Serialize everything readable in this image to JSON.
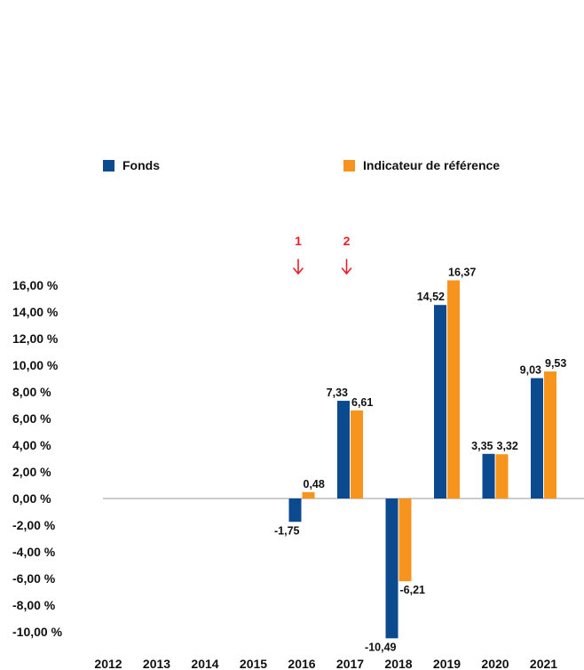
{
  "chart_data": {
    "type": "bar",
    "categories": [
      "2012",
      "2013",
      "2014",
      "2015",
      "2016",
      "2017",
      "2018",
      "2019",
      "2020",
      "2021"
    ],
    "series": [
      {
        "name": "Fonds",
        "color": "#0b4a8f",
        "values": [
          null,
          null,
          null,
          null,
          -1.75,
          7.33,
          -10.49,
          14.52,
          3.35,
          9.03
        ],
        "labels": [
          "",
          "",
          "",
          "",
          "-1,75",
          "7,33",
          "-10,49",
          "14,52",
          "3,35",
          "9,03"
        ]
      },
      {
        "name": "Indicateur de référence",
        "color": "#f7941d",
        "values": [
          null,
          null,
          null,
          null,
          0.48,
          6.61,
          -6.21,
          16.37,
          3.32,
          9.53
        ],
        "labels": [
          "",
          "",
          "",
          "",
          "0,48",
          "6,61",
          "-6,21",
          "16,37",
          "3,32",
          "9,53"
        ]
      }
    ],
    "ylim": [
      -10,
      16
    ],
    "yticks": [
      16,
      14,
      12,
      10,
      8,
      6,
      4,
      2,
      0,
      -2,
      -4,
      -6,
      -8,
      -10
    ],
    "ytick_labels": [
      "16,00 %",
      "14,00 %",
      "12,00 %",
      "10,00 %",
      "8,00 %",
      "6,00 %",
      "4,00 %",
      "2,00 %",
      "0,00 %",
      "-2,00 %",
      "-4,00 %",
      "-6,00 %",
      "-8,00 %",
      "-10,00 %"
    ],
    "legend_position": "top",
    "markers": [
      {
        "label": "1",
        "category": "2016",
        "color": "#e8202a"
      },
      {
        "label": "2",
        "category": "2017",
        "color": "#e8202a"
      }
    ]
  }
}
